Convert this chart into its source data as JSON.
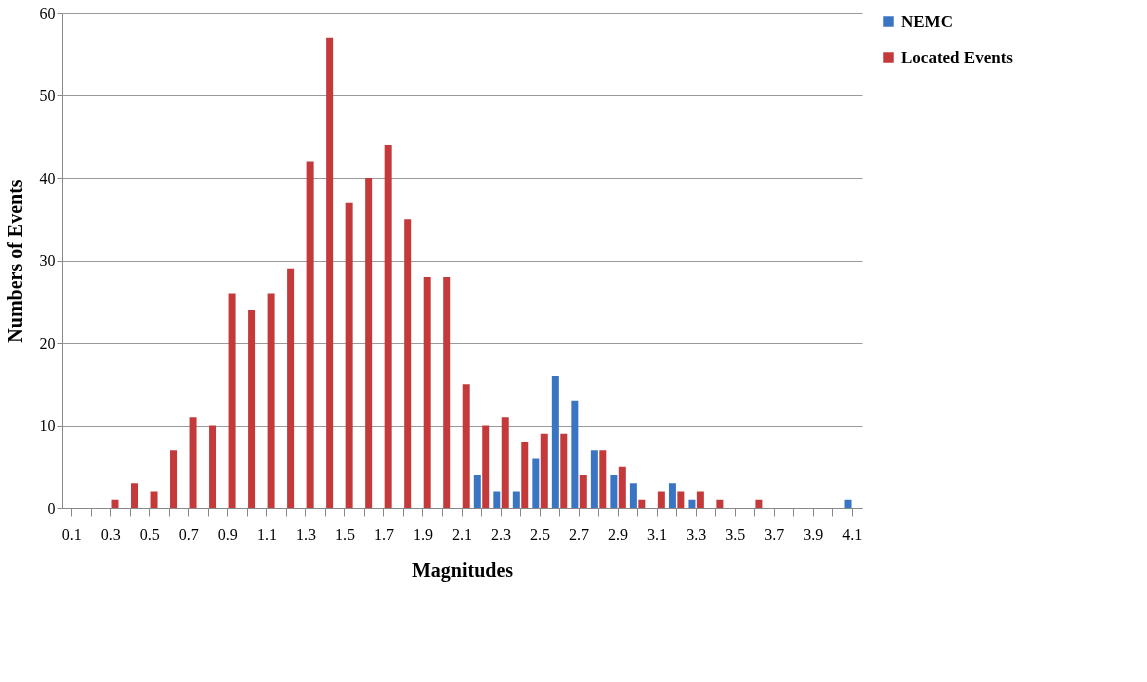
{
  "chart_data": {
    "type": "bar",
    "xlabel": "Magnitudes",
    "ylabel": "Numbers of Events",
    "categories": [
      "0.1",
      null,
      "0.3",
      null,
      "0.5",
      null,
      "0.7",
      null,
      "0.9",
      null,
      "1.1",
      null,
      "1.3",
      null,
      "1.5",
      null,
      "1.7",
      null,
      "1.9",
      null,
      "2.1",
      null,
      "2.3",
      null,
      "2.5",
      null,
      "2.7",
      null,
      "2.9",
      null,
      "3.1",
      null,
      "3.3",
      null,
      "3.5",
      null,
      "3.7",
      null,
      "3.9",
      null,
      "4.1"
    ],
    "series": [
      {
        "name": "NEMC",
        "color": "#3a75c4",
        "values": [
          0,
          0,
          0,
          0,
          0,
          0,
          0,
          0,
          0,
          0,
          0,
          0,
          0,
          0,
          0,
          0,
          0,
          0,
          0,
          0,
          0,
          4,
          2,
          2,
          6,
          16,
          13,
          7,
          4,
          3,
          0,
          3,
          1,
          0,
          0,
          0,
          0,
          0,
          0,
          0,
          1
        ]
      },
      {
        "name": "Located Events",
        "color": "#c43a3a",
        "values": [
          0,
          0,
          1,
          3,
          2,
          7,
          11,
          10,
          26,
          24,
          26,
          29,
          42,
          57,
          37,
          40,
          44,
          35,
          28,
          28,
          15,
          10,
          11,
          8,
          9,
          9,
          4,
          7,
          5,
          1,
          2,
          2,
          2,
          1,
          0,
          1,
          0,
          0,
          0,
          0,
          0
        ]
      }
    ],
    "ylim": [
      0,
      60
    ],
    "yticks": [
      0,
      10,
      20,
      30,
      40,
      50,
      60
    ],
    "grid": "y",
    "legend": "right"
  }
}
